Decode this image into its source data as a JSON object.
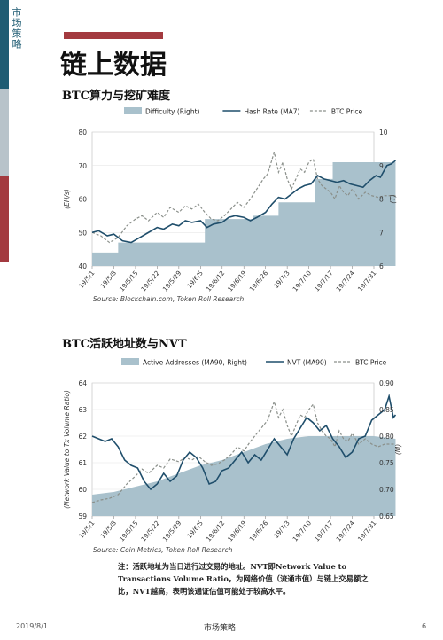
{
  "sidebar": {
    "label": "市场策略"
  },
  "page": {
    "title": "链上数据"
  },
  "charts": {
    "chart1": {
      "title": "BTC算力与挖矿难度",
      "legend": [
        "Difficulty (Right)",
        "Hash Rate (MA7)",
        "BTC Price"
      ],
      "left_axis_label": "(EH/s)",
      "right_axis_label": "(T)",
      "source": "Source: Blockchain.com, Token Roll Research"
    },
    "chart2": {
      "title": "BTC活跃地址数与NVT",
      "legend": [
        "Active Addresses (MA90, Right)",
        "NVT (MA90)",
        "BTC Price"
      ],
      "left_axis_label": "(Network Value to Tx Volume Ratio)",
      "right_axis_label": "(M)",
      "source": "Source: Coin Metrics, Token Roll Research"
    }
  },
  "note": "注：活跃地址为当日进行过交易的地址。NVT即Network Value to Transactions Volume Ratio，为网络价值（流通市值）与链上交易额之比，NVT越高，表明该通证估值可能处于较高水平。",
  "footer": {
    "date": "2019/8/1",
    "center": "市场策略",
    "page": "6"
  },
  "colors": {
    "area": "#a9c1cc",
    "line": "#1f4e6b",
    "price": "#8a8f8a",
    "accent": "#a33a3f"
  },
  "chart_data": [
    {
      "type": "line",
      "title": "BTC算力与挖矿难度",
      "x": [
        "19/5/1",
        "19/5/8",
        "19/5/15",
        "19/5/22",
        "19/5/29",
        "19/6/5",
        "19/6/12",
        "19/6/19",
        "19/6/26",
        "19/7/3",
        "19/7/10",
        "19/7/17",
        "19/7/24",
        "19/7/31"
      ],
      "ylim": [
        40,
        80
      ],
      "yticks": [
        40,
        50,
        60,
        70,
        80
      ],
      "y2lim": [
        6,
        10
      ],
      "y2ticks": [
        6,
        7,
        8,
        9,
        10
      ],
      "series": [
        {
          "name": "Difficulty (Right)",
          "axis": "right",
          "kind": "area-step",
          "points": [
            [
              0,
              6.4
            ],
            [
              1.2,
              6.4
            ],
            [
              1.2,
              6.7
            ],
            [
              5.2,
              6.7
            ],
            [
              5.2,
              7.4
            ],
            [
              7.4,
              7.4
            ],
            [
              7.4,
              7.5
            ],
            [
              8.6,
              7.5
            ],
            [
              8.6,
              7.9
            ],
            [
              10.3,
              7.9
            ],
            [
              10.3,
              8.6
            ],
            [
              11.1,
              8.6
            ],
            [
              11.1,
              9.1
            ],
            [
              14,
              9.1
            ]
          ]
        },
        {
          "name": "Hash Rate (MA7)",
          "axis": "left",
          "points": [
            [
              0,
              50
            ],
            [
              0.3,
              50.5
            ],
            [
              0.7,
              49
            ],
            [
              1,
              49.5
            ],
            [
              1.4,
              47.5
            ],
            [
              1.8,
              47
            ],
            [
              2.2,
              48.5
            ],
            [
              2.6,
              50
            ],
            [
              3,
              51.5
            ],
            [
              3.3,
              51
            ],
            [
              3.7,
              52.5
            ],
            [
              4,
              52
            ],
            [
              4.3,
              53.5
            ],
            [
              4.6,
              53
            ],
            [
              5,
              53.5
            ],
            [
              5.3,
              51.5
            ],
            [
              5.6,
              52.5
            ],
            [
              6,
              53
            ],
            [
              6.3,
              54.5
            ],
            [
              6.6,
              55
            ],
            [
              7,
              54.5
            ],
            [
              7.3,
              53.5
            ],
            [
              7.6,
              54.5
            ],
            [
              8,
              56
            ],
            [
              8.3,
              58.5
            ],
            [
              8.6,
              60.5
            ],
            [
              8.9,
              60
            ],
            [
              9.2,
              61.5
            ],
            [
              9.5,
              63
            ],
            [
              9.8,
              64
            ],
            [
              10.1,
              64.5
            ],
            [
              10.4,
              67
            ],
            [
              10.7,
              66
            ],
            [
              11,
              65.5
            ],
            [
              11.3,
              65
            ],
            [
              11.6,
              65.5
            ],
            [
              11.9,
              64.5
            ],
            [
              12.2,
              64
            ],
            [
              12.5,
              63.5
            ],
            [
              12.8,
              65.5
            ],
            [
              13.1,
              67
            ],
            [
              13.3,
              66.5
            ],
            [
              13.6,
              70
            ],
            [
              13.8,
              70.5
            ],
            [
              14,
              71.5
            ]
          ]
        },
        {
          "name": "BTC Price",
          "axis": "right",
          "kind": "dashed",
          "points": [
            [
              0,
              7
            ],
            [
              0.4,
              6.9
            ],
            [
              0.8,
              6.7
            ],
            [
              1.2,
              6.85
            ],
            [
              1.6,
              7.2
            ],
            [
              2,
              7.4
            ],
            [
              2.3,
              7.5
            ],
            [
              2.6,
              7.35
            ],
            [
              3,
              7.6
            ],
            [
              3.3,
              7.45
            ],
            [
              3.6,
              7.75
            ],
            [
              4,
              7.6
            ],
            [
              4.3,
              7.8
            ],
            [
              4.6,
              7.7
            ],
            [
              4.9,
              7.85
            ],
            [
              5.2,
              7.6
            ],
            [
              5.5,
              7.4
            ],
            [
              5.8,
              7.35
            ],
            [
              6.1,
              7.5
            ],
            [
              6.4,
              7.7
            ],
            [
              6.7,
              7.9
            ],
            [
              7,
              7.75
            ],
            [
              7.3,
              8
            ],
            [
              7.6,
              8.3
            ],
            [
              7.9,
              8.6
            ],
            [
              8.1,
              8.75
            ],
            [
              8.4,
              9.4
            ],
            [
              8.6,
              8.8
            ],
            [
              8.8,
              9.1
            ],
            [
              9,
              8.6
            ],
            [
              9.2,
              8.3
            ],
            [
              9.4,
              8.6
            ],
            [
              9.6,
              8.9
            ],
            [
              9.8,
              8.8
            ],
            [
              10,
              9.1
            ],
            [
              10.2,
              9.2
            ],
            [
              10.4,
              8.6
            ],
            [
              10.6,
              8.4
            ],
            [
              10.8,
              8.3
            ],
            [
              11,
              8.2
            ],
            [
              11.2,
              8.0
            ],
            [
              11.4,
              8.4
            ],
            [
              11.6,
              8.2
            ],
            [
              11.8,
              8.1
            ],
            [
              12,
              8.3
            ],
            [
              12.3,
              8.0
            ],
            [
              12.6,
              8.2
            ],
            [
              12.9,
              8.1
            ],
            [
              13.2,
              8.05
            ],
            [
              13.5,
              8.1
            ],
            [
              13.8,
              8.1
            ],
            [
              14,
              8.1
            ]
          ]
        }
      ]
    },
    {
      "type": "line",
      "title": "BTC活跃地址数与NVT",
      "x": [
        "19/5/1",
        "19/5/8",
        "19/5/15",
        "19/5/22",
        "19/5/29",
        "19/6/5",
        "19/6/12",
        "19/6/19",
        "19/6/26",
        "19/7/3",
        "19/7/10",
        "19/7/17",
        "19/7/24",
        "19/7/31"
      ],
      "ylim": [
        59,
        64
      ],
      "yticks": [
        59,
        60,
        61,
        62,
        63,
        64
      ],
      "y2lim": [
        0.65,
        0.9
      ],
      "y2ticks": [
        0.65,
        0.7,
        0.75,
        0.8,
        0.85,
        0.9
      ],
      "series": [
        {
          "name": "Active Addresses (MA90, Right)",
          "axis": "right",
          "kind": "area",
          "points": [
            [
              0,
              0.69
            ],
            [
              1,
              0.695
            ],
            [
              2,
              0.705
            ],
            [
              3,
              0.715
            ],
            [
              4,
              0.73
            ],
            [
              5,
              0.745
            ],
            [
              6,
              0.755
            ],
            [
              7,
              0.77
            ],
            [
              8,
              0.785
            ],
            [
              9,
              0.795
            ],
            [
              10,
              0.8
            ],
            [
              11,
              0.8
            ],
            [
              12,
              0.8
            ],
            [
              13,
              0.8
            ],
            [
              14,
              0.795
            ]
          ]
        },
        {
          "name": "NVT (MA90)",
          "axis": "left",
          "points": [
            [
              0,
              62
            ],
            [
              0.3,
              61.9
            ],
            [
              0.6,
              61.8
            ],
            [
              0.9,
              61.9
            ],
            [
              1.2,
              61.6
            ],
            [
              1.5,
              61.1
            ],
            [
              1.8,
              60.9
            ],
            [
              2.1,
              60.8
            ],
            [
              2.4,
              60.3
            ],
            [
              2.7,
              60
            ],
            [
              3,
              60.2
            ],
            [
              3.3,
              60.6
            ],
            [
              3.6,
              60.3
            ],
            [
              3.9,
              60.5
            ],
            [
              4.2,
              61.1
            ],
            [
              4.5,
              61.4
            ],
            [
              4.8,
              61.2
            ],
            [
              5.1,
              60.8
            ],
            [
              5.4,
              60.2
            ],
            [
              5.7,
              60.3
            ],
            [
              6,
              60.7
            ],
            [
              6.3,
              60.8
            ],
            [
              6.6,
              61.1
            ],
            [
              6.9,
              61.4
            ],
            [
              7.2,
              61.0
            ],
            [
              7.5,
              61.3
            ],
            [
              7.8,
              61.1
            ],
            [
              8.1,
              61.5
            ],
            [
              8.4,
              61.9
            ],
            [
              8.7,
              61.6
            ],
            [
              9,
              61.3
            ],
            [
              9.3,
              61.9
            ],
            [
              9.6,
              62.3
            ],
            [
              9.9,
              62.7
            ],
            [
              10.2,
              62.5
            ],
            [
              10.5,
              62.2
            ],
            [
              10.8,
              62.4
            ],
            [
              11.1,
              61.9
            ],
            [
              11.4,
              61.6
            ],
            [
              11.7,
              61.2
            ],
            [
              12,
              61.4
            ],
            [
              12.3,
              61.9
            ],
            [
              12.6,
              62.0
            ],
            [
              12.9,
              62.6
            ],
            [
              13.2,
              62.8
            ],
            [
              13.5,
              63.0
            ],
            [
              13.7,
              63.5
            ],
            [
              13.9,
              62.7
            ],
            [
              14,
              62.8
            ]
          ]
        },
        {
          "name": "BTC Price",
          "axis": "right",
          "kind": "dashed",
          "points": [
            [
              0,
              0.675
            ],
            [
              0.4,
              0.68
            ],
            [
              0.8,
              0.683
            ],
            [
              1.2,
              0.69
            ],
            [
              1.6,
              0.71
            ],
            [
              2,
              0.725
            ],
            [
              2.3,
              0.738
            ],
            [
              2.6,
              0.73
            ],
            [
              3,
              0.745
            ],
            [
              3.3,
              0.74
            ],
            [
              3.6,
              0.757
            ],
            [
              4,
              0.752
            ],
            [
              4.3,
              0.76
            ],
            [
              4.6,
              0.755
            ],
            [
              4.9,
              0.762
            ],
            [
              5.2,
              0.752
            ],
            [
              5.5,
              0.745
            ],
            [
              5.8,
              0.748
            ],
            [
              6.1,
              0.755
            ],
            [
              6.4,
              0.765
            ],
            [
              6.7,
              0.78
            ],
            [
              7,
              0.772
            ],
            [
              7.3,
              0.79
            ],
            [
              7.6,
              0.805
            ],
            [
              7.9,
              0.82
            ],
            [
              8.1,
              0.83
            ],
            [
              8.4,
              0.865
            ],
            [
              8.6,
              0.835
            ],
            [
              8.8,
              0.85
            ],
            [
              9,
              0.82
            ],
            [
              9.2,
              0.8
            ],
            [
              9.4,
              0.82
            ],
            [
              9.6,
              0.84
            ],
            [
              9.8,
              0.835
            ],
            [
              10,
              0.85
            ],
            [
              10.2,
              0.86
            ],
            [
              10.4,
              0.825
            ],
            [
              10.6,
              0.81
            ],
            [
              10.8,
              0.8
            ],
            [
              11,
              0.795
            ],
            [
              11.2,
              0.78
            ],
            [
              11.4,
              0.81
            ],
            [
              11.6,
              0.795
            ],
            [
              11.8,
              0.79
            ],
            [
              12,
              0.805
            ],
            [
              12.3,
              0.785
            ],
            [
              12.6,
              0.795
            ],
            [
              12.9,
              0.785
            ],
            [
              13.2,
              0.78
            ],
            [
              13.5,
              0.785
            ],
            [
              13.8,
              0.785
            ],
            [
              14,
              0.785
            ]
          ]
        }
      ]
    }
  ]
}
